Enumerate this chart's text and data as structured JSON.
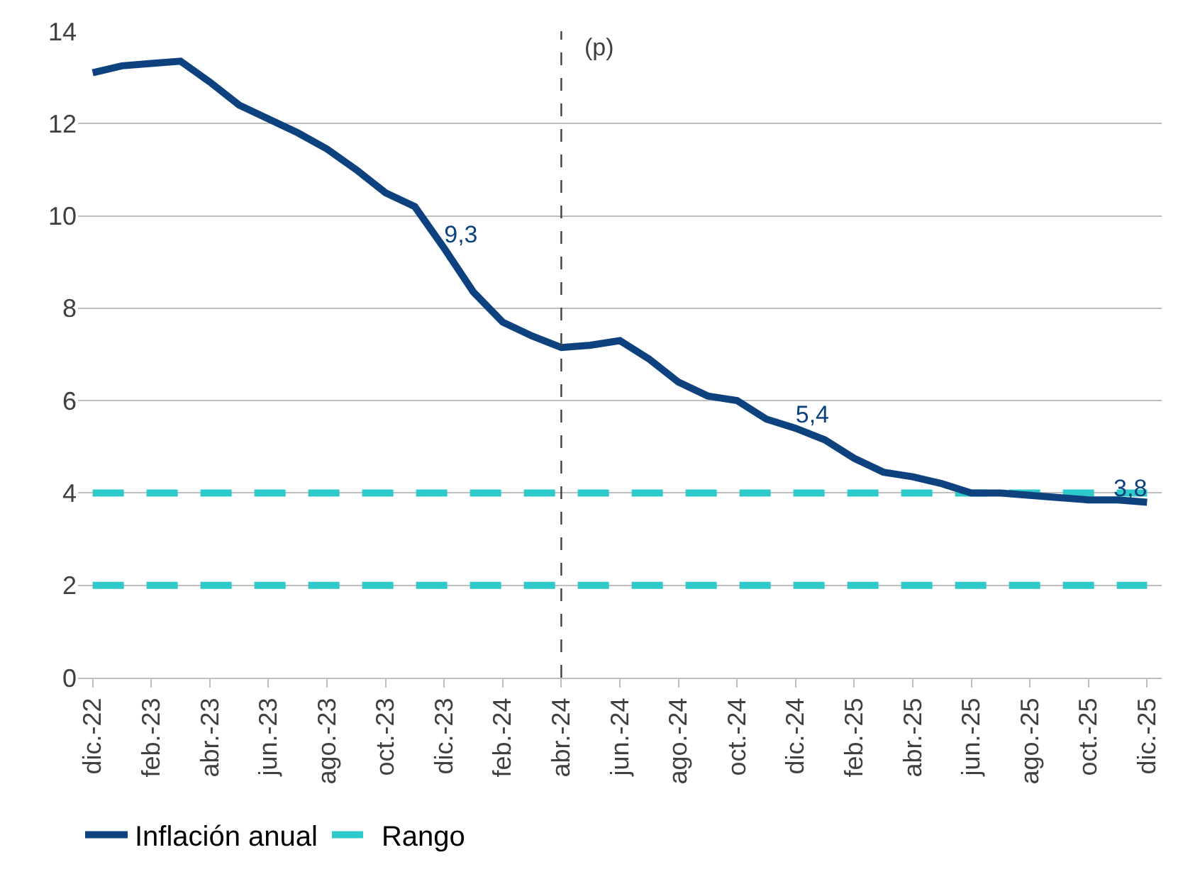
{
  "chart_data": {
    "type": "line",
    "categories": [
      "dic.-22",
      null,
      "feb.-23",
      null,
      "abr.-23",
      null,
      "jun.-23",
      null,
      "ago.-23",
      null,
      "oct.-23",
      null,
      "dic.-23",
      null,
      "feb.-24",
      null,
      "abr.-24",
      null,
      "jun.-24",
      null,
      "ago.-24",
      null,
      "oct.-24",
      null,
      "dic.-24",
      null,
      "feb.-25",
      null,
      "abr.-25",
      null,
      "jun.-25",
      null,
      "ago.-25",
      null,
      "oct.-25",
      null,
      "dic.-25"
    ],
    "series": [
      {
        "name": "Inflación anual",
        "color": "#0d427f",
        "line_style": "solid",
        "values": [
          13.1,
          13.25,
          13.3,
          13.35,
          12.9,
          12.4,
          12.1,
          11.8,
          11.45,
          11.0,
          10.5,
          10.2,
          9.3,
          8.35,
          7.7,
          7.4,
          7.15,
          7.2,
          7.3,
          6.9,
          6.4,
          6.1,
          6.0,
          5.6,
          5.4,
          5.15,
          4.75,
          4.45,
          4.35,
          4.2,
          4.0,
          4.0,
          3.95,
          3.9,
          3.85,
          3.85,
          3.8
        ],
        "value_labels": [
          null,
          null,
          null,
          null,
          null,
          null,
          null,
          null,
          null,
          null,
          null,
          null,
          "9,3",
          null,
          null,
          null,
          null,
          null,
          null,
          null,
          null,
          null,
          null,
          null,
          "5,4",
          null,
          null,
          null,
          null,
          null,
          null,
          null,
          null,
          null,
          null,
          null,
          "3,8"
        ]
      },
      {
        "name": "Rango",
        "color": "#2ecaca",
        "line_style": "dashed",
        "values": [
          4,
          4,
          4,
          4,
          4,
          4,
          4,
          4,
          4,
          4,
          4,
          4,
          4,
          4,
          4,
          4,
          4,
          4,
          4,
          4,
          4,
          4,
          4,
          4,
          4,
          4,
          4,
          4,
          4,
          4,
          4,
          4,
          4,
          4,
          4,
          4,
          4
        ]
      },
      {
        "color": "#2ecaca",
        "line_style": "dashed",
        "values": [
          2,
          2,
          2,
          2,
          2,
          2,
          2,
          2,
          2,
          2,
          2,
          2,
          2,
          2,
          2,
          2,
          2,
          2,
          2,
          2,
          2,
          2,
          2,
          2,
          2,
          2,
          2,
          2,
          2,
          2,
          2,
          2,
          2,
          2,
          2,
          2,
          2
        ]
      }
    ],
    "ylim": [
      0,
      14
    ],
    "yticks": [
      0,
      2,
      4,
      6,
      8,
      10,
      12,
      14
    ],
    "ref_lines": [
      {
        "axis": "x",
        "value": "abr.-24",
        "label": "(p)",
        "color": "#404040",
        "line_style": "dashed"
      }
    ],
    "grid": "y",
    "legend": "bottom",
    "marker": "none"
  }
}
